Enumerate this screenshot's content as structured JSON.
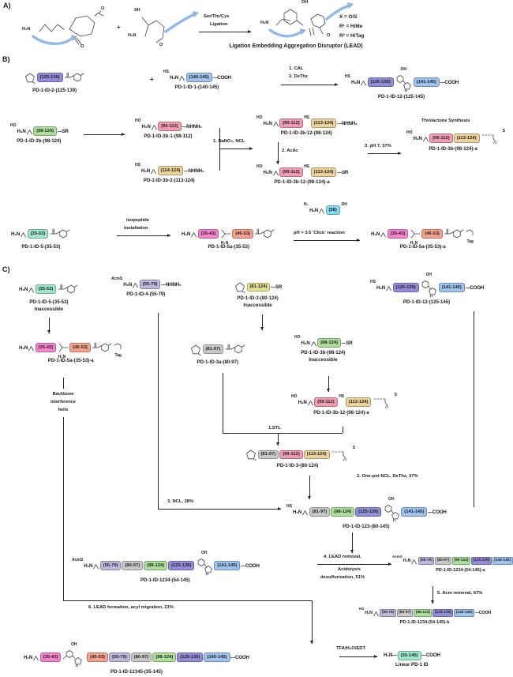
{
  "atoms": {
    "h2n": "H₂N",
    "hs": "HS",
    "ho": "HO",
    "oh": "OH",
    "sh": "SH",
    "o": "O",
    "s": "S",
    "n3": "N₃",
    "sr": "SR",
    "x": "X",
    "plus": "+",
    "tag": "Tag",
    "acms": "AcmS"
  },
  "colors": {
    "periwinkle": "#938cdb",
    "blue": "#9ec3ee",
    "green": "#abdf9a",
    "pink": "#f29cb1",
    "tan": "#ecd29b",
    "mint": "#9fe8cc",
    "magenta": "#f584cd",
    "salmon": "#f4a28e",
    "lavender": "#bfb7dd",
    "gray": "#c9c9c9",
    "yellow": "#e6e295",
    "cyan": "#85dff2"
  },
  "panel_a": {
    "label": "A)",
    "arrow1": "Ser/Thr/Cys",
    "arrow2": "Ligation",
    "caption": "Ligation Embedding Aggregation Disruptor (LEAD)",
    "legend": [
      "X = O/S",
      "R¹ = H/Me",
      "R² = H/Tag"
    ]
  },
  "panel_b": {
    "label": "B)"
  },
  "panel_c": {
    "label": "C)",
    "backbone": [
      "Backbone",
      "interference",
      "helix"
    ]
  },
  "steps": {
    "b1_1": "1. CAL",
    "b1_2": "2. DeThz",
    "b2_1": "1. NaNO₂, NCL",
    "b2_2": "2. AcAc",
    "b2_3": "3. pH 7, 37%",
    "b2_title": "Thiolactone Synthesis",
    "b3_1a": "Isopeptide",
    "b3_1b": "installation",
    "b3_2": "pH = 3.5 'Click' reaction",
    "inaccessible": "Inaccessible",
    "c_stl": "1.STL",
    "c_2": "2. One-pot NCL, DeThz, 37%",
    "c_3": "3. NCL, 28%",
    "c_4a": "4. LEAD removal,",
    "c_4b": "Acidolysis",
    "c_4c": "desulfurization, 51%",
    "c_5": "5. Acm removal, 67%",
    "c_6": "6. LEAD formation, acyl migration, 21%",
    "c_tfa": "TFA/H₂O/EDT"
  },
  "constructs": {
    "b1a": {
      "caption": "PD-1-ID-2-(125-139)",
      "parts": [
        {
          "d": "thz"
        },
        {
          "box": "(125-139)",
          "c": "periwinkle"
        },
        {
          "d": "sal"
        }
      ]
    },
    "b1b": {
      "caption": "PD-1-ID-1-(140-145)",
      "parts": [
        {
          "sup": "HS"
        },
        {
          "t": "H₂N"
        },
        {
          "d": "stub"
        },
        {
          "box": "(140-145)",
          "c": "blue"
        },
        {
          "t": "—COOH"
        }
      ]
    },
    "b1p": {
      "caption": "PD-1-ID-12-(125-145)",
      "parts": [
        {
          "sup": "HS"
        },
        {
          "t": "H₂N"
        },
        {
          "d": "stub"
        },
        {
          "box": "(126-139)",
          "c": "periwinkle"
        },
        {
          "d": "lead"
        },
        {
          "box": "(141-145)",
          "c": "blue"
        },
        {
          "t": "—COOH"
        }
      ]
    },
    "b2a": {
      "caption": "PD-1-ID-3b-(98-124)",
      "parts": [
        {
          "sup": "HO"
        },
        {
          "t": "H₂N"
        },
        {
          "d": "stub"
        },
        {
          "box": "(98-124)",
          "c": "green"
        },
        {
          "t": "—SR"
        }
      ]
    },
    "b2b": {
      "caption": "PD-1-ID-3b-1-(98-112)",
      "parts": [
        {
          "sup": "HO"
        },
        {
          "t": "H₂N"
        },
        {
          "d": "stub"
        },
        {
          "box": "(99-112)",
          "c": "pink"
        },
        {
          "t": "—NHNH₂"
        }
      ]
    },
    "b2c": {
      "caption": "PD-1-ID-3b-2-(113-124)",
      "parts": [
        {
          "sup": "HS"
        },
        {
          "t": "H₂N"
        },
        {
          "d": "stub"
        },
        {
          "box": "(114-124)",
          "c": "tan"
        },
        {
          "t": "—NHNH₂"
        }
      ]
    },
    "b2d": {
      "caption": "PD-1-ID-3b-12-(98-124)",
      "parts": [
        {
          "sup": "HO"
        },
        {
          "t": "H₂N"
        },
        {
          "d": "stub"
        },
        {
          "box": "(99-112)",
          "c": "pink"
        },
        {
          "sup": "HS"
        },
        {
          "box": "(113-124)",
          "c": "tan"
        },
        {
          "t": "—NHNH₂"
        }
      ]
    },
    "b2e": {
      "caption": "PD-1-ID-3b-12-(98-124)-a",
      "parts": [
        {
          "sup": "HO"
        },
        {
          "t": "H₂N"
        },
        {
          "d": "stub"
        },
        {
          "box": "(99-112)",
          "c": "pink"
        },
        {
          "sup": "HS"
        },
        {
          "box": "(113-124)",
          "c": "tan"
        },
        {
          "t": "—SR"
        }
      ]
    },
    "b2f": {
      "caption": "PD-1-ID-3b-(98-124)-a",
      "parts": [
        {
          "sup": "HO"
        },
        {
          "t": "H₂N"
        },
        {
          "d": "stub"
        },
        {
          "box": "(99-112)",
          "c": "pink"
        },
        {
          "box": "(113-124)",
          "c": "tan"
        },
        {
          "d": "tl"
        }
      ]
    },
    "b3a": {
      "caption": "PD-1-ID-5-(35-53)",
      "parts": [
        {
          "t": "H₂N"
        },
        {
          "d": "stub"
        },
        {
          "box": "(35-53)",
          "c": "mint"
        },
        {
          "d": "sal"
        }
      ]
    },
    "b3b": {
      "caption": "PD-1-ID-5a-(35-53)",
      "parts": [
        {
          "t": "H₂N"
        },
        {
          "d": "stub"
        },
        {
          "box": "(35-43)",
          "c": "magenta"
        },
        {
          "d": "br"
        },
        {
          "box": "(46-53)",
          "c": "salmon"
        },
        {
          "d": "sal"
        }
      ]
    },
    "b3r": {
      "parts": [
        {
          "sup": "N₃"
        },
        {
          "t": "H₂N"
        },
        {
          "d": "stub"
        },
        {
          "box": "(58)",
          "c": "cyan"
        },
        {
          "sup": "OH"
        }
      ]
    },
    "b3c": {
      "caption": "PD-1-ID-5a-(35-53)-a",
      "parts": [
        {
          "t": "H₂N"
        },
        {
          "d": "stub"
        },
        {
          "box": "(35-43)",
          "c": "magenta"
        },
        {
          "d": "br"
        },
        {
          "box": "(46-53)",
          "c": "salmon"
        },
        {
          "d": "sal"
        },
        {
          "d": "tagd"
        }
      ]
    },
    "c1": {
      "caption": "PD-1-ID-5-(35-53)",
      "note": "Inaccessible",
      "parts": [
        {
          "t": "H₂N"
        },
        {
          "d": "stub"
        },
        {
          "box": "(35-53)",
          "c": "mint"
        },
        {
          "d": "sal"
        }
      ]
    },
    "c2": {
      "caption": "PD-1-ID-4-(55-79)",
      "parts": [
        {
          "sup": "AcmS"
        },
        {
          "t": "H₂N"
        },
        {
          "d": "stub"
        },
        {
          "box": "(55-79)",
          "c": "lavender"
        },
        {
          "t": "—NHNH₂"
        }
      ]
    },
    "c3": {
      "caption": "PD-1-ID-3-(80-124)",
      "note": "Inaccessible",
      "parts": [
        {
          "d": "thz"
        },
        {
          "box": "(81-124)",
          "c": "yellow"
        },
        {
          "t": "—SR"
        }
      ]
    },
    "c4": {
      "caption": "PD-1-ID-12-(125-145)",
      "parts": [
        {
          "sup": "HS"
        },
        {
          "t": "H₂N"
        },
        {
          "d": "stub"
        },
        {
          "box": "(126-139)",
          "c": "periwinkle"
        },
        {
          "d": "lead"
        },
        {
          "box": "(141-145)",
          "c": "blue"
        },
        {
          "t": "—COOH"
        }
      ]
    },
    "c5": {
      "caption": "PD-1-ID-5a-(35-53)-a",
      "parts": [
        {
          "t": "H₂N"
        },
        {
          "d": "stub"
        },
        {
          "box": "(35-43)",
          "c": "magenta"
        },
        {
          "d": "br"
        },
        {
          "box": "(46-53)",
          "c": "salmon"
        },
        {
          "d": "sal"
        },
        {
          "d": "tagd"
        }
      ]
    },
    "c6": {
      "caption": "PD-1-ID-3a-(80-97)",
      "parts": [
        {
          "d": "thz"
        },
        {
          "box": "(81-97)",
          "c": "gray"
        },
        {
          "d": "sal"
        }
      ]
    },
    "c7": {
      "caption": "PD-1-ID-3b-(98-124)",
      "note": "Inaccessible",
      "parts": [
        {
          "sup": "HO"
        },
        {
          "t": "H₂N"
        },
        {
          "d": "stub"
        },
        {
          "box": "(98-124)",
          "c": "green"
        },
        {
          "t": "—SR"
        }
      ]
    },
    "c8": {
      "caption": "PD-1-ID-3b-12-(98-124)-a",
      "parts": [
        {
          "sup": "HO"
        },
        {
          "t": "H₂N"
        },
        {
          "d": "stub"
        },
        {
          "box": "(99-112)",
          "c": "pink"
        },
        {
          "sup": "HS"
        },
        {
          "box": "(113-124)",
          "c": "tan"
        },
        {
          "d": "tl"
        }
      ]
    },
    "c9": {
      "caption": "PD-1-ID-3-(80-124)",
      "parts": [
        {
          "d": "thz"
        },
        {
          "box": "(81-97)",
          "c": "gray"
        },
        {
          "box": "(99-112)",
          "c": "pink"
        },
        {
          "box": "(113-124)",
          "c": "tan"
        },
        {
          "d": "tl"
        }
      ]
    },
    "c10": {
      "caption": "PD-1-ID-123-(80-145)",
      "parts": [
        {
          "sup": "HS"
        },
        {
          "t": "H₂N"
        },
        {
          "d": "stub"
        },
        {
          "box": "(81-97)",
          "c": "gray"
        },
        {
          "box": "(98-124)",
          "c": "green"
        },
        {
          "box": "(125-139)",
          "c": "periwinkle"
        },
        {
          "d": "lead"
        },
        {
          "box": "(141-145)",
          "c": "blue"
        },
        {
          "t": "—COOH"
        }
      ]
    },
    "c11": {
      "caption": "PD-1-ID-1234-(54-145)",
      "parts": [
        {
          "sup": "AcmS"
        },
        {
          "t": "H₂N"
        },
        {
          "d": "stub"
        },
        {
          "box": "(55-79)",
          "c": "lavender"
        },
        {
          "box": "(80-97)",
          "c": "gray"
        },
        {
          "box": "(98-124)",
          "c": "green"
        },
        {
          "box": "(125-139)",
          "c": "periwinkle"
        },
        {
          "d": "lead"
        },
        {
          "box": "(141-145)",
          "c": "blue"
        },
        {
          "t": "—COOH"
        }
      ]
    },
    "c12": {
      "caption": "PD-1-ID-1234-(54-145)-a",
      "parts": [
        {
          "sup": "AcmS"
        },
        {
          "t": "H₂N"
        },
        {
          "d": "stub"
        },
        {
          "box": "(55-79)",
          "c": "lavender"
        },
        {
          "box": "(80-97)",
          "c": "gray"
        },
        {
          "box": "(98-124)",
          "c": "green"
        },
        {
          "box": "(125-139)",
          "c": "periwinkle"
        },
        {
          "box": "(140-145)",
          "c": "blue"
        },
        {
          "t": "—COOH"
        }
      ]
    },
    "c13": {
      "caption": "PD-1-ID-1234-(54-145)-b",
      "parts": [
        {
          "sup": "HS"
        },
        {
          "t": "H₂N"
        },
        {
          "d": "stub"
        },
        {
          "box": "(55-79)",
          "c": "lavender"
        },
        {
          "box": "(80-97)",
          "c": "gray"
        },
        {
          "box": "(98-124)",
          "c": "green"
        },
        {
          "box": "(125-139)",
          "c": "periwinkle"
        },
        {
          "box": "(140-145)",
          "c": "blue"
        },
        {
          "t": "—COOH"
        }
      ]
    },
    "c14": {
      "caption": "PD-1-ID-12345-(35-145)",
      "parts": [
        {
          "t": "H₂N"
        },
        {
          "d": "stub"
        },
        {
          "box": "(35-43)",
          "c": "magenta"
        },
        {
          "d": "li"
        },
        {
          "box": "(45-53)",
          "c": "salmon"
        },
        {
          "box": "(55-79)",
          "c": "lavender"
        },
        {
          "box": "(80-97)",
          "c": "gray"
        },
        {
          "box": "(98-124)",
          "c": "green"
        },
        {
          "box": "(125-139)",
          "c": "periwinkle"
        },
        {
          "box": "(140-145)",
          "c": "blue"
        },
        {
          "t": "—COOH"
        }
      ]
    },
    "c15": {
      "caption": "Linear PD-1 ID",
      "parts": [
        {
          "t": "H₂N—"
        },
        {
          "box": "(35-145)",
          "c": "mint"
        },
        {
          "t": "—COOH"
        }
      ]
    }
  }
}
